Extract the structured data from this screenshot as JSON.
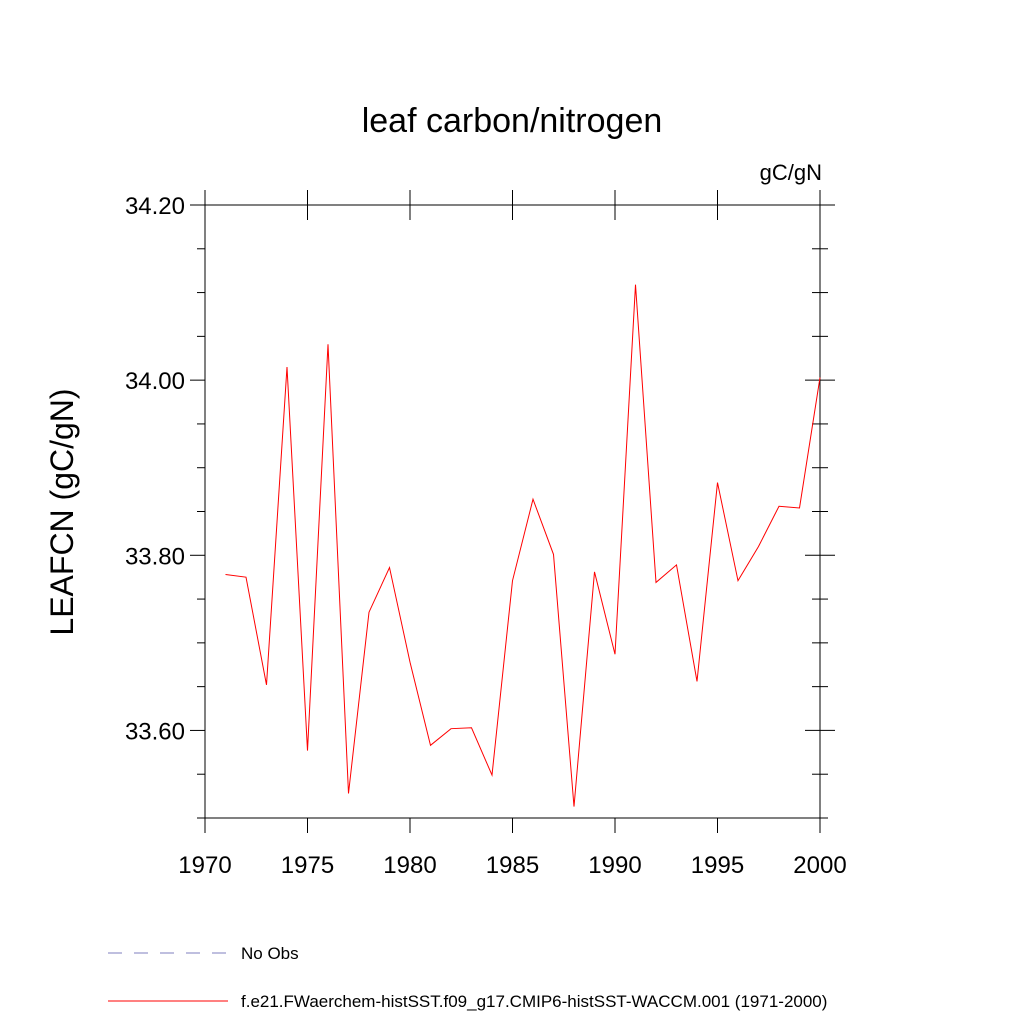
{
  "chart_data": {
    "type": "line",
    "title": "leaf carbon/nitrogen",
    "units_label": "gC/gN",
    "ylabel": "LEAFCN  (gC/gN)",
    "xlabel": "",
    "xlim": [
      1970,
      2000
    ],
    "ylim": [
      33.5,
      34.2
    ],
    "x_ticks": [
      1970,
      1975,
      1980,
      1985,
      1990,
      1995,
      2000
    ],
    "x_tick_labels": [
      "1970",
      "1975",
      "1980",
      "1985",
      "1990",
      "1995",
      "2000"
    ],
    "y_ticks": [
      33.6,
      33.8,
      34.0,
      34.2
    ],
    "y_tick_labels": [
      "33.60",
      "33.80",
      "34.00",
      "34.20"
    ],
    "y_minor_step": 0.05,
    "x_minor_step": 1,
    "grid": false,
    "series": [
      {
        "name": "f.e21.FWaerchem-histSST.f09_g17.CMIP6-histSST-WACCM.001 (1971-2000)",
        "color": "#ff0000",
        "style": "solid",
        "x": [
          1971,
          1972,
          1973,
          1974,
          1975,
          1976,
          1977,
          1978,
          1979,
          1980,
          1981,
          1982,
          1983,
          1984,
          1985,
          1986,
          1987,
          1988,
          1989,
          1990,
          1991,
          1992,
          1993,
          1994,
          1995,
          1996,
          1997,
          1998,
          1999,
          2000
        ],
        "values": [
          33.778,
          33.775,
          33.652,
          34.015,
          33.577,
          34.041,
          33.528,
          33.735,
          33.786,
          33.678,
          33.583,
          33.602,
          33.603,
          33.549,
          33.771,
          33.864,
          33.801,
          33.513,
          33.781,
          33.687,
          34.109,
          33.769,
          33.789,
          33.656,
          33.883,
          33.771,
          33.81,
          33.856,
          33.854,
          34.003
        ]
      }
    ],
    "legend": {
      "placement": "bottom-left",
      "entries": [
        {
          "label": "No Obs",
          "color": "#7f7fbf",
          "style": "dashed"
        },
        {
          "label": "f.e21.FWaerchem-histSST.f09_g17.CMIP6-histSST-WACCM.001 (1971-2000)",
          "color": "#ff0000",
          "style": "solid"
        }
      ]
    }
  }
}
